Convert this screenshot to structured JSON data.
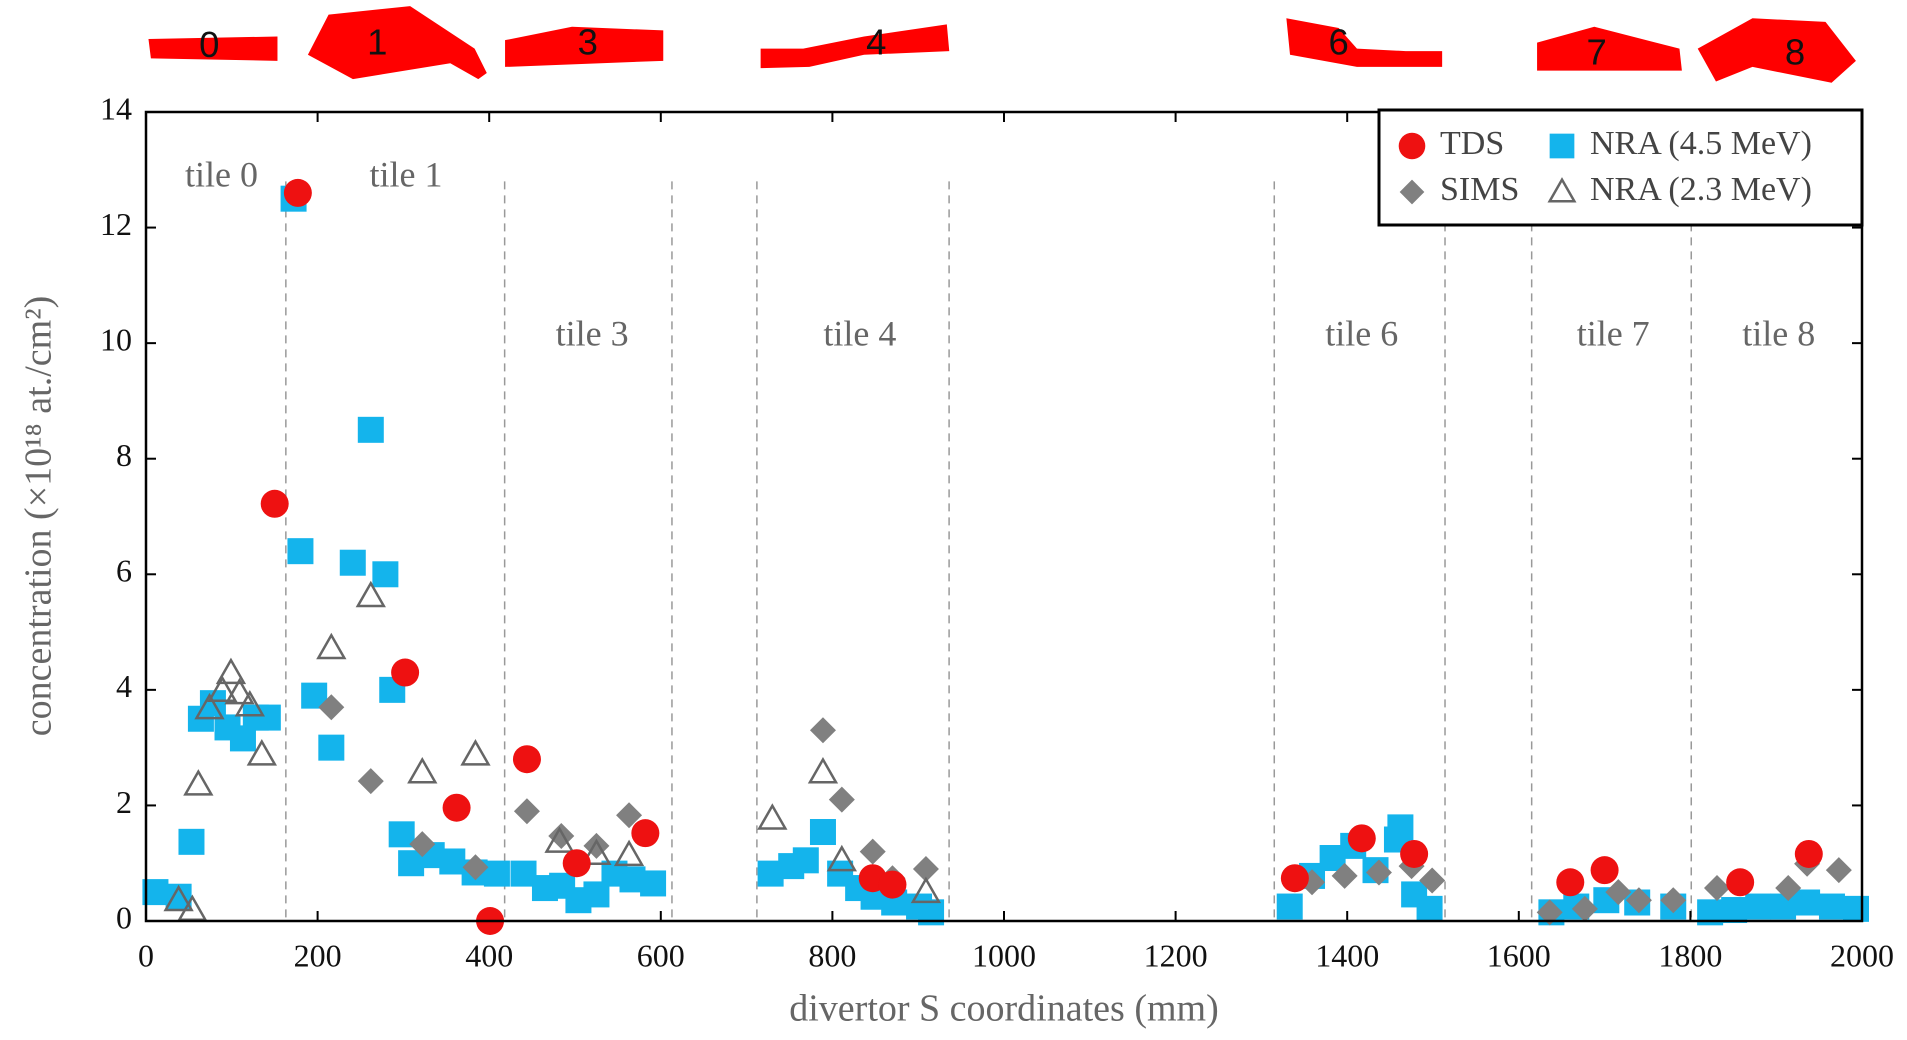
{
  "chart_data": {
    "type": "scatter",
    "xlabel": "divertor S coordinates (mm)",
    "ylabel": "concentration (×10¹⁸ at./cm²)",
    "xlim": [
      0,
      2000
    ],
    "ylim": [
      0,
      14
    ],
    "xticks": [
      0,
      200,
      400,
      600,
      800,
      1000,
      1200,
      1400,
      1600,
      1800,
      2000
    ],
    "yticks": [
      0,
      2,
      4,
      6,
      8,
      10,
      12,
      14
    ],
    "legend": "upper right",
    "tile_boundaries": [
      163,
      418,
      613,
      712,
      936,
      1315,
      1514,
      1615,
      1801
    ],
    "annotations": [
      {
        "text": "tile 0",
        "x": 88,
        "y": 12.85
      },
      {
        "text": "tile 1",
        "x": 303,
        "y": 12.85
      },
      {
        "text": "tile 3",
        "x": 520,
        "y": 10.1
      },
      {
        "text": "tile 4",
        "x": 832,
        "y": 10.1
      },
      {
        "text": "tile 6",
        "x": 1417,
        "y": 10.1
      },
      {
        "text": "tile 7",
        "x": 1710,
        "y": 10.1
      },
      {
        "text": "tile 8",
        "x": 1903,
        "y": 10.1
      }
    ],
    "tile_icons": [
      "0",
      "1",
      "3",
      "4",
      "6",
      "7",
      "8"
    ],
    "series": [
      {
        "name": "TDS",
        "marker": "circle",
        "color": "#ee1111",
        "x": [
          150,
          177,
          302,
          362,
          401,
          444,
          502,
          582,
          847,
          870,
          1339,
          1417,
          1478,
          1660,
          1700,
          1858,
          1938
        ],
        "values": [
          7.22,
          12.6,
          4.3,
          1.96,
          0,
          2.8,
          1.0,
          1.52,
          0.74,
          0.63,
          0.74,
          1.43,
          1.16,
          0.67,
          0.88,
          0.67,
          1.16
        ]
      },
      {
        "name": "SIMS",
        "marker": "diamond",
        "color": "#808080",
        "x": [
          216,
          262,
          322,
          384,
          444,
          484,
          525,
          563,
          789,
          811,
          847,
          870,
          909,
          1359,
          1397,
          1437,
          1475,
          1499,
          1636,
          1677,
          1716,
          1740,
          1780,
          1831,
          1914,
          1936,
          1973
        ],
        "values": [
          3.7,
          2.42,
          1.33,
          0.93,
          1.9,
          1.47,
          1.3,
          1.83,
          3.3,
          2.1,
          1.2,
          0.74,
          0.9,
          0.67,
          0.78,
          0.84,
          0.95,
          0.7,
          0.15,
          0.21,
          0.5,
          0.36,
          0.36,
          0.57,
          0.57,
          0.99,
          0.88
        ]
      },
      {
        "name": "NRA (4.5 MeV)",
        "marker": "square",
        "color": "#14b4ec",
        "x": [
          11,
          38,
          53,
          64,
          78,
          95,
          113,
          128,
          142,
          172,
          180,
          196,
          216,
          241,
          262,
          279,
          287,
          298,
          309,
          333,
          357,
          383,
          409,
          440,
          465,
          485,
          504,
          525,
          546,
          567,
          591,
          728,
          752,
          769,
          789,
          809,
          830,
          848,
          872,
          901,
          915,
          1333,
          1359,
          1383,
          1407,
          1433,
          1458,
          1462,
          1478,
          1496,
          1638,
          1667,
          1702,
          1738,
          1780,
          1823,
          1851,
          1879,
          1908,
          1936,
          1965,
          1993
        ],
        "values": [
          0.5,
          0.42,
          1.37,
          3.5,
          3.77,
          3.35,
          3.16,
          3.52,
          3.52,
          12.5,
          6.4,
          3.9,
          3.0,
          6.2,
          8.5,
          6.0,
          4.0,
          1.5,
          1.0,
          1.14,
          1.03,
          0.84,
          0.82,
          0.82,
          0.57,
          0.61,
          0.36,
          0.46,
          0.82,
          0.72,
          0.65,
          0.82,
          0.95,
          1.05,
          1.54,
          0.82,
          0.57,
          0.42,
          0.32,
          0.25,
          0.15,
          0.25,
          0.78,
          1.09,
          1.3,
          0.88,
          1.41,
          1.62,
          0.46,
          0.21,
          0.15,
          0.25,
          0.36,
          0.32,
          0.25,
          0.15,
          0.19,
          0.25,
          0.25,
          0.32,
          0.25,
          0.21
        ]
      },
      {
        "name": "NRA (2.3 MeV)",
        "marker": "triangle",
        "color": "#666666",
        "x": [
          38,
          54,
          61,
          74,
          89,
          99,
          109,
          121,
          135,
          216,
          262,
          322,
          384,
          482,
          525,
          563,
          730,
          789,
          811,
          909
        ],
        "values": [
          0.36,
          0.19,
          2.36,
          3.68,
          3.98,
          4.29,
          3.94,
          3.73,
          2.88,
          4.72,
          5.62,
          2.57,
          2.88,
          1.37,
          1.16,
          1.14,
          1.77,
          2.57,
          1.05,
          0.5
        ]
      }
    ]
  }
}
